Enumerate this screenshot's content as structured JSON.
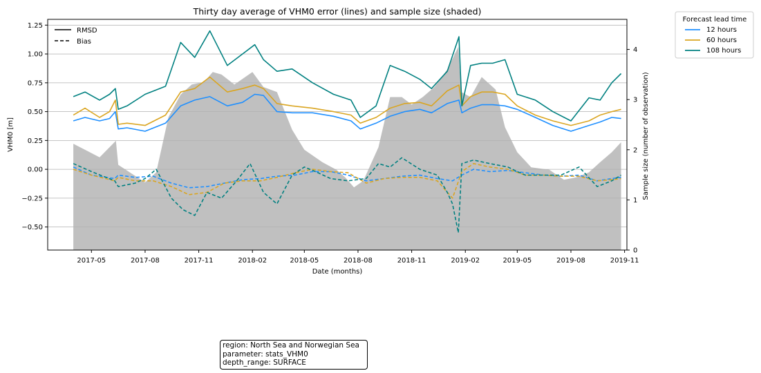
{
  "chart_data": {
    "type": "line",
    "title": "Thirty day average of VHM0 error (lines) and sample size (shaded)",
    "xlabel": "Date (months)",
    "ylabel": "VHM0 [m]",
    "ylabel_right": "Sample size (number of observation)",
    "xlim": [
      "2017-02-15",
      "2019-11-05"
    ],
    "ylim": [
      -0.7,
      1.3
    ],
    "y2lim": [
      0,
      4.6
    ],
    "x_tick_labels": [
      "2017-05",
      "2017-08",
      "2017-11",
      "2018-02",
      "2018-05",
      "2018-08",
      "2018-11",
      "2019-02",
      "2019-05",
      "2019-08",
      "2019-11"
    ],
    "x_ticks": [
      "2017-05-01",
      "2017-08-01",
      "2017-11-01",
      "2018-02-01",
      "2018-05-01",
      "2018-08-01",
      "2018-11-01",
      "2019-02-01",
      "2019-05-01",
      "2019-08-01",
      "2019-11-01"
    ],
    "y_tick_labels": [
      "−0.50",
      "−0.25",
      "0.00",
      "0.25",
      "0.50",
      "0.75",
      "1.00",
      "1.25"
    ],
    "y_ticks": [
      -0.5,
      -0.25,
      0,
      0.25,
      0.5,
      0.75,
      1.0,
      1.25
    ],
    "y2_tick_labels": [
      "0",
      "1",
      "2",
      "3",
      "4"
    ],
    "y2_ticks": [
      0,
      1,
      2,
      3,
      4
    ],
    "grid": "horizontal",
    "style_legend": {
      "placement": "upper-left",
      "entries": [
        {
          "label": "RMSD",
          "dash": "solid"
        },
        {
          "label": "Bias",
          "dash": "dashed"
        }
      ]
    },
    "lead_legend": {
      "placement": "outside-right",
      "title": "Forecast lead time"
    },
    "colors": {
      "12 hours": "#1e8fff",
      "60 hours": "#daa520",
      "108 hours": "#008080",
      "shade": "#c0c0c0"
    },
    "sample_size": {
      "x": [
        "2017-03-31",
        "2017-05-15",
        "2017-06-12",
        "2017-06-16",
        "2017-08-01",
        "2017-08-20",
        "2017-09-10",
        "2017-10-01",
        "2017-10-20",
        "2017-11-10",
        "2017-11-25",
        "2017-12-10",
        "2018-01-01",
        "2018-02-01",
        "2018-02-20",
        "2018-03-15",
        "2018-04-10",
        "2018-05-01",
        "2018-06-01",
        "2018-06-25",
        "2018-07-10",
        "2018-07-25",
        "2018-08-10",
        "2018-09-05",
        "2018-09-25",
        "2018-10-15",
        "2018-11-01",
        "2018-11-20",
        "2018-12-10",
        "2019-01-01",
        "2019-01-20",
        "2019-01-25",
        "2019-02-10",
        "2019-03-01",
        "2019-03-25",
        "2019-04-10",
        "2019-05-01",
        "2019-05-25",
        "2019-06-25",
        "2019-07-20",
        "2019-08-10",
        "2019-09-01",
        "2019-09-20",
        "2019-10-10",
        "2019-10-26"
      ],
      "values": [
        2.12,
        1.85,
        2.18,
        1.7,
        1.35,
        1.55,
        2.65,
        3.1,
        3.3,
        3.35,
        3.55,
        3.5,
        3.3,
        3.55,
        3.25,
        3.15,
        2.4,
        2.0,
        1.75,
        1.6,
        1.45,
        1.25,
        1.38,
        2.05,
        3.05,
        3.05,
        2.9,
        3.05,
        3.25,
        3.6,
        4.05,
        3.15,
        3.05,
        3.45,
        3.2,
        2.45,
        1.95,
        1.65,
        1.6,
        1.4,
        1.45,
        1.55,
        1.75,
        1.95,
        2.15
      ]
    },
    "series": [
      {
        "name": "12 hours",
        "metric": "RMSD",
        "x": [
          "2017-03-31",
          "2017-04-20",
          "2017-05-15",
          "2017-06-01",
          "2017-06-11",
          "2017-06-16",
          "2017-07-01",
          "2017-08-01",
          "2017-09-05",
          "2017-10-01",
          "2017-10-25",
          "2017-11-20",
          "2017-12-20",
          "2018-01-15",
          "2018-02-05",
          "2018-02-20",
          "2018-03-15",
          "2018-04-10",
          "2018-05-15",
          "2018-06-20",
          "2018-07-20",
          "2018-08-05",
          "2018-09-01",
          "2018-09-25",
          "2018-10-20",
          "2018-11-15",
          "2018-12-05",
          "2019-01-01",
          "2019-01-21",
          "2019-01-26",
          "2019-02-10",
          "2019-03-01",
          "2019-03-20",
          "2019-04-10",
          "2019-05-01",
          "2019-06-01",
          "2019-07-01",
          "2019-08-01",
          "2019-09-01",
          "2019-09-20",
          "2019-10-10",
          "2019-10-26"
        ],
        "values": [
          0.42,
          0.45,
          0.42,
          0.44,
          0.5,
          0.35,
          0.36,
          0.33,
          0.4,
          0.55,
          0.6,
          0.63,
          0.55,
          0.58,
          0.65,
          0.64,
          0.5,
          0.49,
          0.49,
          0.46,
          0.42,
          0.35,
          0.4,
          0.46,
          0.5,
          0.52,
          0.49,
          0.57,
          0.6,
          0.49,
          0.53,
          0.56,
          0.56,
          0.55,
          0.52,
          0.45,
          0.38,
          0.33,
          0.38,
          0.41,
          0.45,
          0.44
        ]
      },
      {
        "name": "60 hours",
        "metric": "RMSD",
        "x": [
          "2017-03-31",
          "2017-04-20",
          "2017-05-15",
          "2017-06-01",
          "2017-06-11",
          "2017-06-16",
          "2017-07-01",
          "2017-08-01",
          "2017-09-05",
          "2017-10-01",
          "2017-10-25",
          "2017-11-20",
          "2017-12-20",
          "2018-01-15",
          "2018-02-05",
          "2018-02-20",
          "2018-03-15",
          "2018-04-10",
          "2018-05-15",
          "2018-06-20",
          "2018-07-20",
          "2018-08-05",
          "2018-09-01",
          "2018-09-25",
          "2018-10-20",
          "2018-11-15",
          "2018-12-05",
          "2019-01-01",
          "2019-01-21",
          "2019-01-26",
          "2019-02-10",
          "2019-03-01",
          "2019-03-20",
          "2019-04-10",
          "2019-05-01",
          "2019-06-01",
          "2019-07-01",
          "2019-08-01",
          "2019-09-01",
          "2019-09-20",
          "2019-10-10",
          "2019-10-26"
        ],
        "values": [
          0.47,
          0.53,
          0.45,
          0.5,
          0.6,
          0.39,
          0.4,
          0.38,
          0.47,
          0.67,
          0.7,
          0.8,
          0.67,
          0.7,
          0.73,
          0.7,
          0.57,
          0.55,
          0.53,
          0.5,
          0.47,
          0.4,
          0.45,
          0.53,
          0.57,
          0.58,
          0.55,
          0.68,
          0.73,
          0.55,
          0.63,
          0.67,
          0.67,
          0.65,
          0.55,
          0.47,
          0.42,
          0.38,
          0.42,
          0.47,
          0.5,
          0.52
        ]
      },
      {
        "name": "108 hours",
        "metric": "RMSD",
        "x": [
          "2017-03-31",
          "2017-04-20",
          "2017-05-15",
          "2017-06-01",
          "2017-06-11",
          "2017-06-16",
          "2017-07-01",
          "2017-08-01",
          "2017-09-05",
          "2017-10-01",
          "2017-10-25",
          "2017-11-20",
          "2017-12-20",
          "2018-01-15",
          "2018-02-05",
          "2018-02-20",
          "2018-03-15",
          "2018-04-10",
          "2018-05-15",
          "2018-06-20",
          "2018-07-20",
          "2018-08-05",
          "2018-09-01",
          "2018-09-25",
          "2018-10-20",
          "2018-11-15",
          "2018-12-05",
          "2019-01-01",
          "2019-01-21",
          "2019-01-26",
          "2019-02-10",
          "2019-03-01",
          "2019-03-20",
          "2019-04-10",
          "2019-05-01",
          "2019-06-01",
          "2019-07-01",
          "2019-08-01",
          "2019-09-01",
          "2019-09-20",
          "2019-10-10",
          "2019-10-26"
        ],
        "values": [
          0.63,
          0.67,
          0.6,
          0.65,
          0.7,
          0.52,
          0.55,
          0.65,
          0.72,
          1.1,
          0.97,
          1.2,
          0.9,
          1.0,
          1.08,
          0.95,
          0.85,
          0.87,
          0.75,
          0.65,
          0.6,
          0.45,
          0.55,
          0.9,
          0.85,
          0.78,
          0.7,
          0.85,
          1.15,
          0.55,
          0.9,
          0.92,
          0.92,
          0.95,
          0.65,
          0.6,
          0.5,
          0.42,
          0.62,
          0.6,
          0.75,
          0.83
        ]
      },
      {
        "name": "12 hours",
        "metric": "Bias",
        "x": [
          "2017-03-31",
          "2017-05-01",
          "2017-06-10",
          "2017-06-16",
          "2017-07-15",
          "2017-08-15",
          "2017-09-15",
          "2017-10-15",
          "2017-11-15",
          "2017-12-15",
          "2018-01-15",
          "2018-02-15",
          "2018-03-15",
          "2018-04-15",
          "2018-05-15",
          "2018-06-15",
          "2018-07-15",
          "2018-08-15",
          "2018-09-15",
          "2018-10-15",
          "2018-11-15",
          "2018-12-15",
          "2019-01-10",
          "2019-01-26",
          "2019-02-15",
          "2019-03-15",
          "2019-04-15",
          "2019-05-15",
          "2019-06-15",
          "2019-07-15",
          "2019-08-15",
          "2019-09-15",
          "2019-10-10",
          "2019-10-26"
        ],
        "values": [
          0.02,
          -0.05,
          -0.08,
          -0.05,
          -0.07,
          -0.06,
          -0.12,
          -0.16,
          -0.15,
          -0.12,
          -0.09,
          -0.08,
          -0.06,
          -0.05,
          -0.02,
          -0.02,
          -0.05,
          -0.1,
          -0.08,
          -0.06,
          -0.05,
          -0.08,
          -0.1,
          -0.05,
          0.0,
          -0.02,
          -0.01,
          -0.03,
          -0.05,
          -0.06,
          -0.05,
          -0.1,
          -0.08,
          -0.07
        ]
      },
      {
        "name": "60 hours",
        "metric": "Bias",
        "x": [
          "2017-03-31",
          "2017-05-01",
          "2017-06-10",
          "2017-06-16",
          "2017-07-15",
          "2017-08-15",
          "2017-09-15",
          "2017-10-15",
          "2017-11-15",
          "2017-12-15",
          "2018-01-15",
          "2018-02-15",
          "2018-03-15",
          "2018-04-15",
          "2018-05-15",
          "2018-06-15",
          "2018-07-15",
          "2018-08-15",
          "2018-09-15",
          "2018-10-15",
          "2018-11-15",
          "2018-12-15",
          "2019-01-10",
          "2019-01-26",
          "2019-02-15",
          "2019-03-15",
          "2019-04-15",
          "2019-05-15",
          "2019-06-15",
          "2019-07-15",
          "2019-08-15",
          "2019-09-15",
          "2019-10-10",
          "2019-10-26"
        ],
        "values": [
          0.0,
          -0.05,
          -0.1,
          -0.07,
          -0.1,
          -0.1,
          -0.15,
          -0.22,
          -0.2,
          -0.12,
          -0.1,
          -0.1,
          -0.07,
          -0.03,
          0.0,
          -0.02,
          -0.03,
          -0.12,
          -0.08,
          -0.07,
          -0.07,
          -0.1,
          -0.25,
          -0.02,
          0.05,
          0.02,
          0.0,
          -0.05,
          -0.05,
          -0.06,
          -0.06,
          -0.1,
          -0.09,
          -0.08
        ]
      },
      {
        "name": "108 hours",
        "metric": "Bias",
        "x": [
          "2017-03-31",
          "2017-05-01",
          "2017-06-10",
          "2017-06-16",
          "2017-07-15",
          "2017-08-01",
          "2017-08-20",
          "2017-09-15",
          "2017-10-05",
          "2017-10-25",
          "2017-11-15",
          "2017-12-10",
          "2018-01-05",
          "2018-01-28",
          "2018-02-20",
          "2018-03-15",
          "2018-04-10",
          "2018-05-01",
          "2018-05-20",
          "2018-06-15",
          "2018-07-15",
          "2018-08-15",
          "2018-09-05",
          "2018-09-25",
          "2018-10-15",
          "2018-11-15",
          "2018-12-15",
          "2019-01-01",
          "2019-01-10",
          "2019-01-20",
          "2019-01-26",
          "2019-02-15",
          "2019-03-15",
          "2019-04-15",
          "2019-05-01",
          "2019-05-15",
          "2019-06-15",
          "2019-07-15",
          "2019-08-15",
          "2019-09-15",
          "2019-10-10",
          "2019-10-26"
        ],
        "values": [
          0.05,
          -0.02,
          -0.1,
          -0.15,
          -0.12,
          -0.08,
          0.0,
          -0.25,
          -0.35,
          -0.4,
          -0.2,
          -0.25,
          -0.1,
          0.05,
          -0.2,
          -0.3,
          -0.05,
          0.02,
          -0.02,
          -0.08,
          -0.1,
          -0.08,
          0.05,
          0.02,
          0.1,
          0.0,
          -0.05,
          -0.2,
          -0.3,
          -0.55,
          0.05,
          0.08,
          0.05,
          0.02,
          -0.02,
          -0.05,
          -0.05,
          -0.05,
          0.02,
          -0.15,
          -0.1,
          -0.05
        ]
      }
    ]
  },
  "info_box": {
    "line1": "region: North Sea and Norwegian Sea",
    "line2": "parameter: stats_VHM0",
    "line3": "depth_range: SURFACE"
  }
}
